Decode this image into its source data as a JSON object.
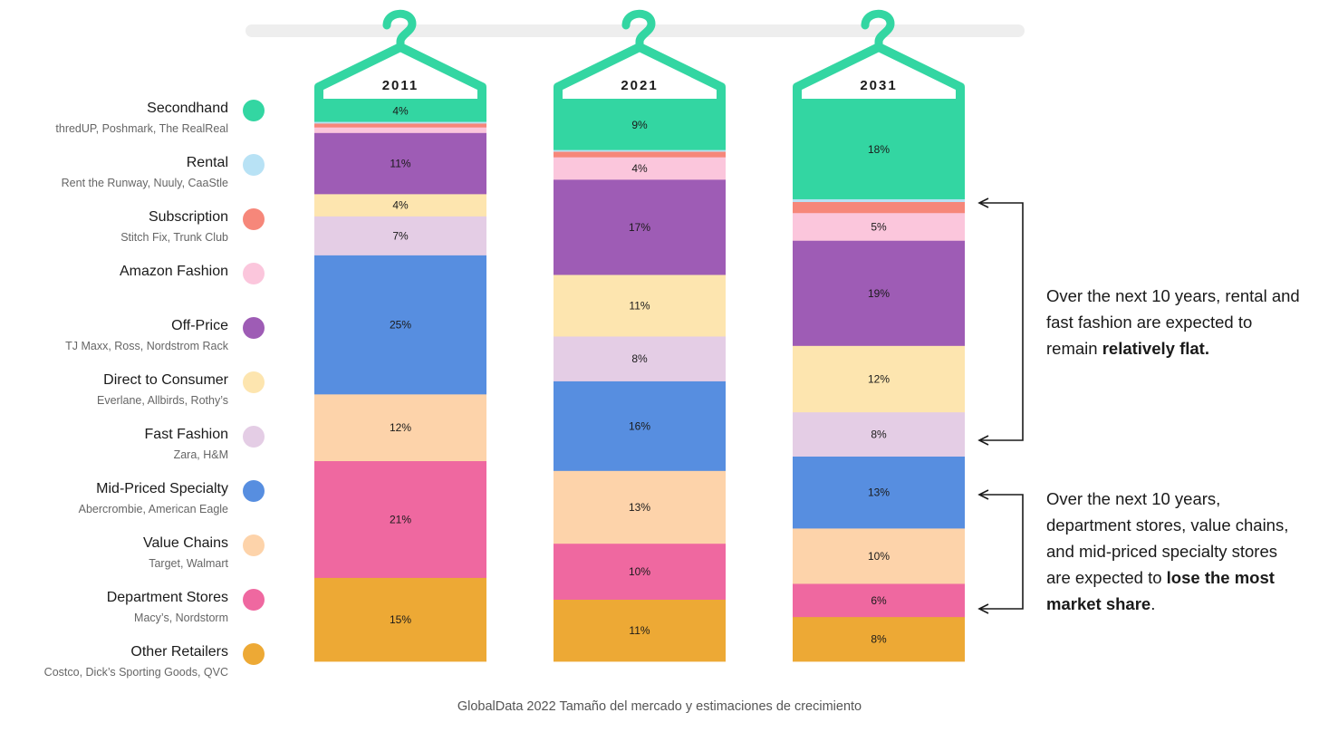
{
  "legend": [
    {
      "name": "Secondhand",
      "sub": "thredUP, Poshmark, The RealReal",
      "color": "#33d6a2"
    },
    {
      "name": "Rental",
      "sub": "Rent the Runway, Nuuly, CaaStle",
      "color": "#b8e2f5"
    },
    {
      "name": "Subscription",
      "sub": "Stitch Fix, Trunk Club",
      "color": "#f6877a"
    },
    {
      "name": "Amazon Fashion",
      "sub": "",
      "color": "#fbc6dc"
    },
    {
      "name": "Off-Price",
      "sub": "TJ Maxx, Ross, Nordstrom Rack",
      "color": "#9e5cb5"
    },
    {
      "name": "Direct to Consumer",
      "sub": "Everlane, Allbirds, Rothy’s",
      "color": "#fde5af"
    },
    {
      "name": "Fast Fashion",
      "sub": "Zara, H&M",
      "color": "#e4cde5"
    },
    {
      "name": "Mid-Priced Specialty",
      "sub": "Abercrombie, American Eagle",
      "color": "#578ee0"
    },
    {
      "name": "Value Chains",
      "sub": "Target, Walmart",
      "color": "#fdd3aa"
    },
    {
      "name": "Department Stores",
      "sub": "Macy’s, Nordstorm",
      "color": "#ef68a0"
    },
    {
      "name": "Other Retailers",
      "sub": "Costco, Dick’s Sporting Goods, QVC",
      "color": "#eda935"
    }
  ],
  "chart_data": {
    "type": "bar",
    "stacked": true,
    "categories": [
      "2011",
      "2021",
      "2031"
    ],
    "series": [
      {
        "name": "Secondhand",
        "values": [
          4,
          9,
          18
        ],
        "labels": [
          "4%",
          "9%",
          "18%"
        ]
      },
      {
        "name": "Rental",
        "values": [
          0.3,
          0.3,
          0.5
        ],
        "labels": [
          "",
          "",
          ""
        ]
      },
      {
        "name": "Subscription",
        "values": [
          0.7,
          1,
          2
        ],
        "labels": [
          "",
          "",
          ""
        ]
      },
      {
        "name": "Amazon Fashion",
        "values": [
          1,
          4,
          5
        ],
        "labels": [
          "",
          "4%",
          "5%"
        ]
      },
      {
        "name": "Off-Price",
        "values": [
          11,
          17,
          19
        ],
        "labels": [
          "11%",
          "17%",
          "19%"
        ]
      },
      {
        "name": "Direct to Consumer",
        "values": [
          4,
          11,
          12
        ],
        "labels": [
          "4%",
          "11%",
          "12%"
        ]
      },
      {
        "name": "Fast Fashion",
        "values": [
          7,
          8,
          8
        ],
        "labels": [
          "7%",
          "8%",
          "8%"
        ]
      },
      {
        "name": "Mid-Priced Specialty",
        "values": [
          25,
          16,
          13
        ],
        "labels": [
          "25%",
          "16%",
          "13%"
        ]
      },
      {
        "name": "Value Chains",
        "values": [
          12,
          13,
          10
        ],
        "labels": [
          "12%",
          "13%",
          "10%"
        ]
      },
      {
        "name": "Department Stores",
        "values": [
          21,
          10,
          6
        ],
        "labels": [
          "21%",
          "10%",
          "6%"
        ]
      },
      {
        "name": "Other Retailers",
        "values": [
          15,
          11,
          8
        ],
        "labels": [
          "15%",
          "11%",
          "8%"
        ]
      }
    ]
  },
  "notes": {
    "flat_a": "Over the next 10 years, rental and fast fashion are expected to remain ",
    "flat_b": "relatively flat.",
    "lose_a": "Over the next 10 years, department stores, value chains, and mid-priced specialty stores are expected to ",
    "lose_b": "lose the most market share",
    "lose_c": "."
  },
  "footer": "GlobalData 2022 Tamaño del mercado y estimaciones de crecimiento",
  "colors": {
    "hanger": "#33d6a2",
    "rod": "#eeeeee",
    "arrow": "#1a1a1a"
  }
}
